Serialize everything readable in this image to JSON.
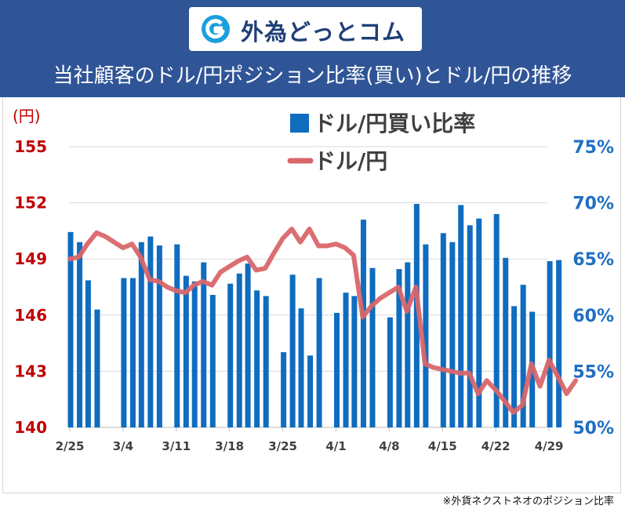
{
  "header": {
    "logo_text": "外為どっとコム",
    "title": "当社顧客のドル/円ポジション比率(買い)とドル/円の推移"
  },
  "footnote": "※外貨ネクストネオのポジション比率",
  "colors": {
    "header_bg": "#2f5597",
    "bar": "#0f6cbf",
    "line": "#d9666a",
    "left_axis": "#c00000",
    "right_axis": "#1f6fc2",
    "grid": "#d9d9d9"
  },
  "chart_data": {
    "type": "bar+line",
    "left_axis": {
      "unit_label": "(円)",
      "range": [
        140,
        155
      ],
      "ticks": [
        "155",
        "152",
        "149",
        "146",
        "143",
        "140"
      ]
    },
    "right_axis": {
      "range": [
        50,
        75
      ],
      "ticks": [
        "75%",
        "70%",
        "65%",
        "60%",
        "55%",
        "50%"
      ]
    },
    "x_labels": [
      "2/25",
      "3/4",
      "3/11",
      "3/18",
      "3/25",
      "4/1",
      "4/8",
      "4/15",
      "4/22",
      "4/29"
    ],
    "legend": {
      "bar": "ドル/円買い比率",
      "line": "ドル/円"
    },
    "series": [
      {
        "name": "ドル/円買い比率",
        "kind": "bar",
        "values": [
          [
            0,
            67.4
          ],
          [
            0.17,
            66.5
          ],
          [
            0.33,
            63.1
          ],
          [
            0.5,
            60.5
          ],
          [
            1.0,
            63.3
          ],
          [
            1.17,
            63.3
          ],
          [
            1.33,
            66.5
          ],
          [
            1.5,
            67.0
          ],
          [
            1.67,
            66.2
          ],
          [
            2.0,
            66.3
          ],
          [
            2.17,
            63.5
          ],
          [
            2.33,
            63.0
          ],
          [
            2.5,
            64.7
          ],
          [
            2.67,
            61.8
          ],
          [
            3.0,
            62.8
          ],
          [
            3.17,
            63.7
          ],
          [
            3.33,
            64.6
          ],
          [
            3.5,
            62.2
          ],
          [
            3.67,
            61.7
          ],
          [
            4.0,
            56.7
          ],
          [
            4.17,
            63.6
          ],
          [
            4.33,
            60.6
          ],
          [
            4.5,
            56.4
          ],
          [
            4.67,
            63.3
          ],
          [
            5.0,
            60.2
          ],
          [
            5.17,
            62.0
          ],
          [
            5.33,
            61.7
          ],
          [
            5.5,
            68.5
          ],
          [
            5.67,
            64.2
          ],
          [
            6.0,
            59.8
          ],
          [
            6.17,
            64.1
          ],
          [
            6.33,
            64.7
          ],
          [
            6.5,
            69.9
          ],
          [
            6.67,
            66.3
          ],
          [
            7.0,
            67.3
          ],
          [
            7.17,
            66.5
          ],
          [
            7.33,
            69.8
          ],
          [
            7.5,
            68.0
          ],
          [
            7.67,
            68.6
          ],
          [
            8.0,
            69.0
          ],
          [
            8.17,
            65.1
          ],
          [
            8.33,
            60.8
          ],
          [
            8.5,
            62.7
          ],
          [
            8.67,
            60.3
          ],
          [
            9.0,
            64.8
          ],
          [
            9.17,
            64.9
          ]
        ]
      },
      {
        "name": "ドル/円",
        "kind": "line",
        "points": [
          [
            0,
            149.0
          ],
          [
            0.17,
            149.1
          ],
          [
            0.33,
            149.8
          ],
          [
            0.5,
            150.4
          ],
          [
            0.67,
            150.2
          ],
          [
            0.83,
            149.9
          ],
          [
            1.0,
            149.6
          ],
          [
            1.17,
            149.8
          ],
          [
            1.33,
            149.1
          ],
          [
            1.5,
            147.9
          ],
          [
            1.67,
            147.8
          ],
          [
            1.83,
            147.5
          ],
          [
            2.0,
            147.3
          ],
          [
            2.17,
            147.2
          ],
          [
            2.33,
            147.6
          ],
          [
            2.5,
            147.8
          ],
          [
            2.67,
            147.6
          ],
          [
            2.83,
            148.3
          ],
          [
            3.0,
            148.6
          ],
          [
            3.17,
            148.9
          ],
          [
            3.33,
            149.1
          ],
          [
            3.5,
            148.4
          ],
          [
            3.67,
            148.5
          ],
          [
            3.83,
            149.3
          ],
          [
            4.0,
            150.1
          ],
          [
            4.17,
            150.6
          ],
          [
            4.33,
            149.9
          ],
          [
            4.5,
            150.6
          ],
          [
            4.67,
            149.7
          ],
          [
            4.83,
            149.7
          ],
          [
            5.0,
            149.8
          ],
          [
            5.17,
            149.6
          ],
          [
            5.33,
            149.2
          ],
          [
            5.5,
            145.9
          ],
          [
            5.67,
            146.5
          ],
          [
            5.83,
            146.9
          ],
          [
            6.0,
            147.2
          ],
          [
            6.17,
            147.5
          ],
          [
            6.33,
            146.2
          ],
          [
            6.5,
            147.5
          ],
          [
            6.67,
            143.4
          ],
          [
            6.83,
            143.2
          ],
          [
            7.0,
            143.1
          ],
          [
            7.17,
            143.0
          ],
          [
            7.33,
            142.9
          ],
          [
            7.5,
            142.9
          ],
          [
            7.67,
            141.8
          ],
          [
            7.83,
            142.5
          ],
          [
            8.0,
            142.0
          ],
          [
            8.17,
            141.4
          ],
          [
            8.33,
            140.8
          ],
          [
            8.5,
            141.2
          ],
          [
            8.67,
            143.4
          ],
          [
            8.83,
            142.2
          ],
          [
            9.0,
            143.6
          ],
          [
            9.17,
            142.7
          ],
          [
            9.33,
            141.8
          ],
          [
            9.5,
            142.5
          ]
        ]
      }
    ]
  }
}
